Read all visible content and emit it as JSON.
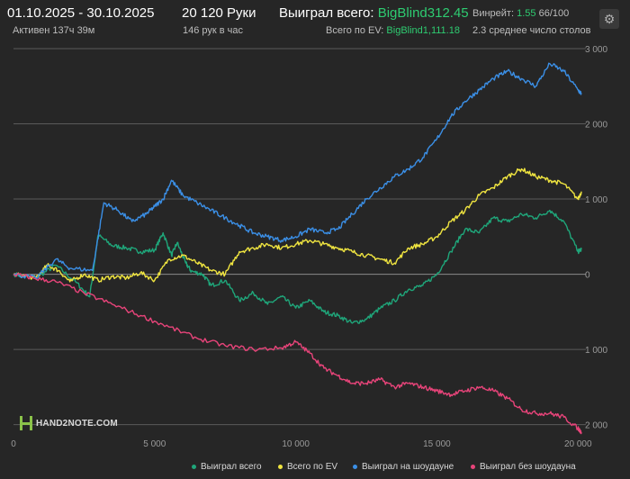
{
  "header": {
    "date_range": "01.10.2025 - 30.10.2025",
    "active_time": "Активен 137ч 39м",
    "hands_count": "20 120 Руки",
    "hands_per_hour": "146 рук в час",
    "won_total_label": "Выиграл всего:",
    "won_total_value": "BigBlind312.45",
    "ev_total_label": "Всего по EV:",
    "ev_total_value": "BigBlind1,111.18",
    "winrate_label": "Винрейт:",
    "winrate_value": "1.55",
    "winrate_suffix": "66/100",
    "avg_tables": "2.3 среднее число столов"
  },
  "logo_text": "HAND2NOTE.COM",
  "icons": {
    "settings": "gear-icon",
    "logo": "hand2note-logo-icon"
  },
  "colors": {
    "background": "#262626",
    "won_total": "#1fa67a",
    "ev": "#f0e540",
    "showdown": "#3b8fe6",
    "non_showdown": "#e8447a",
    "grid": "#5a5a5a"
  },
  "chart_data": {
    "type": "line",
    "title": "",
    "xlabel": "",
    "ylabel": "",
    "xlim": [
      0,
      20120
    ],
    "ylim": [
      -2100,
      3000
    ],
    "x_ticks": [
      0,
      5000,
      10000,
      15000,
      20000
    ],
    "x_tick_labels": [
      "0",
      "5 000",
      "10 000",
      "15 000",
      "20 000"
    ],
    "y_ticks": [
      3000,
      2000,
      1000,
      0,
      -1000,
      -2000
    ],
    "y_tick_labels": [
      "3 000",
      "2 000",
      "1 000",
      "0",
      "1 000",
      "2 000"
    ],
    "y_axis_side": "right",
    "grid": true,
    "legend_position": "bottom-right",
    "series": [
      {
        "name": "Выиграл всего",
        "color": "#1fa67a",
        "x": [
          0,
          800,
          1500,
          2200,
          2700,
          3000,
          3500,
          4000,
          4500,
          5000,
          5300,
          5600,
          5800,
          6100,
          6300,
          6700,
          7000,
          7500,
          8000,
          8500,
          9000,
          9500,
          10000,
          10500,
          11000,
          11500,
          12000,
          12500,
          13000,
          13500,
          14000,
          14500,
          15000,
          15500,
          16000,
          16500,
          17000,
          17500,
          18000,
          18500,
          19000,
          19500,
          20000,
          20120
        ],
        "y": [
          0,
          -50,
          120,
          -100,
          -300,
          520,
          380,
          350,
          300,
          320,
          550,
          250,
          420,
          150,
          40,
          0,
          -150,
          -80,
          -350,
          -250,
          -400,
          -300,
          -450,
          -350,
          -500,
          -550,
          -650,
          -600,
          -450,
          -350,
          -200,
          -150,
          0,
          300,
          600,
          550,
          750,
          700,
          800,
          750,
          850,
          700,
          300,
          330
        ]
      },
      {
        "name": "Всего по EV",
        "color": "#f0e540",
        "x": [
          0,
          800,
          1200,
          1600,
          2000,
          2500,
          3000,
          3500,
          4000,
          4500,
          5000,
          5500,
          6000,
          6500,
          7000,
          7500,
          8000,
          8500,
          9000,
          9500,
          10000,
          10500,
          11000,
          11500,
          12000,
          12500,
          13000,
          13500,
          14000,
          14500,
          15000,
          15500,
          16000,
          16500,
          17000,
          17500,
          18000,
          18500,
          19000,
          19500,
          20000,
          20120
        ],
        "y": [
          0,
          -50,
          120,
          50,
          -100,
          0,
          -80,
          -30,
          -50,
          20,
          -80,
          200,
          250,
          150,
          50,
          0,
          300,
          350,
          400,
          350,
          400,
          450,
          400,
          350,
          300,
          250,
          200,
          150,
          350,
          400,
          500,
          700,
          850,
          1050,
          1150,
          1300,
          1400,
          1300,
          1250,
          1200,
          1000,
          1100
        ]
      },
      {
        "name": "Выиграл на шоудауне",
        "color": "#3b8fe6",
        "x": [
          0,
          800,
          1500,
          2000,
          2800,
          3200,
          3700,
          4200,
          4700,
          5000,
          5300,
          5600,
          6000,
          6500,
          7000,
          7500,
          8000,
          8500,
          9000,
          9500,
          10000,
          10500,
          11000,
          11500,
          12000,
          12500,
          13000,
          13500,
          14000,
          14500,
          15000,
          15500,
          16000,
          16500,
          17000,
          17500,
          18000,
          18500,
          19000,
          19500,
          20000,
          20120
        ],
        "y": [
          0,
          -50,
          200,
          80,
          50,
          950,
          850,
          700,
          800,
          900,
          1000,
          1250,
          1050,
          950,
          850,
          750,
          650,
          550,
          500,
          450,
          500,
          600,
          550,
          600,
          800,
          1000,
          1150,
          1300,
          1400,
          1550,
          1800,
          2100,
          2300,
          2450,
          2600,
          2700,
          2600,
          2500,
          2800,
          2700,
          2450,
          2400
        ]
      },
      {
        "name": "Выиграл без шоудауна",
        "color": "#e8447a",
        "x": [
          0,
          700,
          1500,
          2500,
          3500,
          4500,
          5500,
          6500,
          7500,
          8500,
          9500,
          10000,
          10500,
          11000,
          11500,
          12000,
          12500,
          13000,
          13500,
          14000,
          14500,
          15000,
          15500,
          16000,
          16500,
          17000,
          17500,
          18000,
          18500,
          19000,
          19500,
          20000,
          20120
        ],
        "y": [
          0,
          -50,
          -100,
          -250,
          -400,
          -550,
          -700,
          -850,
          -950,
          -1000,
          -980,
          -900,
          -1050,
          -1250,
          -1350,
          -1450,
          -1450,
          -1400,
          -1500,
          -1450,
          -1500,
          -1550,
          -1600,
          -1550,
          -1500,
          -1550,
          -1650,
          -1800,
          -1850,
          -1850,
          -1900,
          -2050,
          -2100
        ]
      }
    ]
  }
}
